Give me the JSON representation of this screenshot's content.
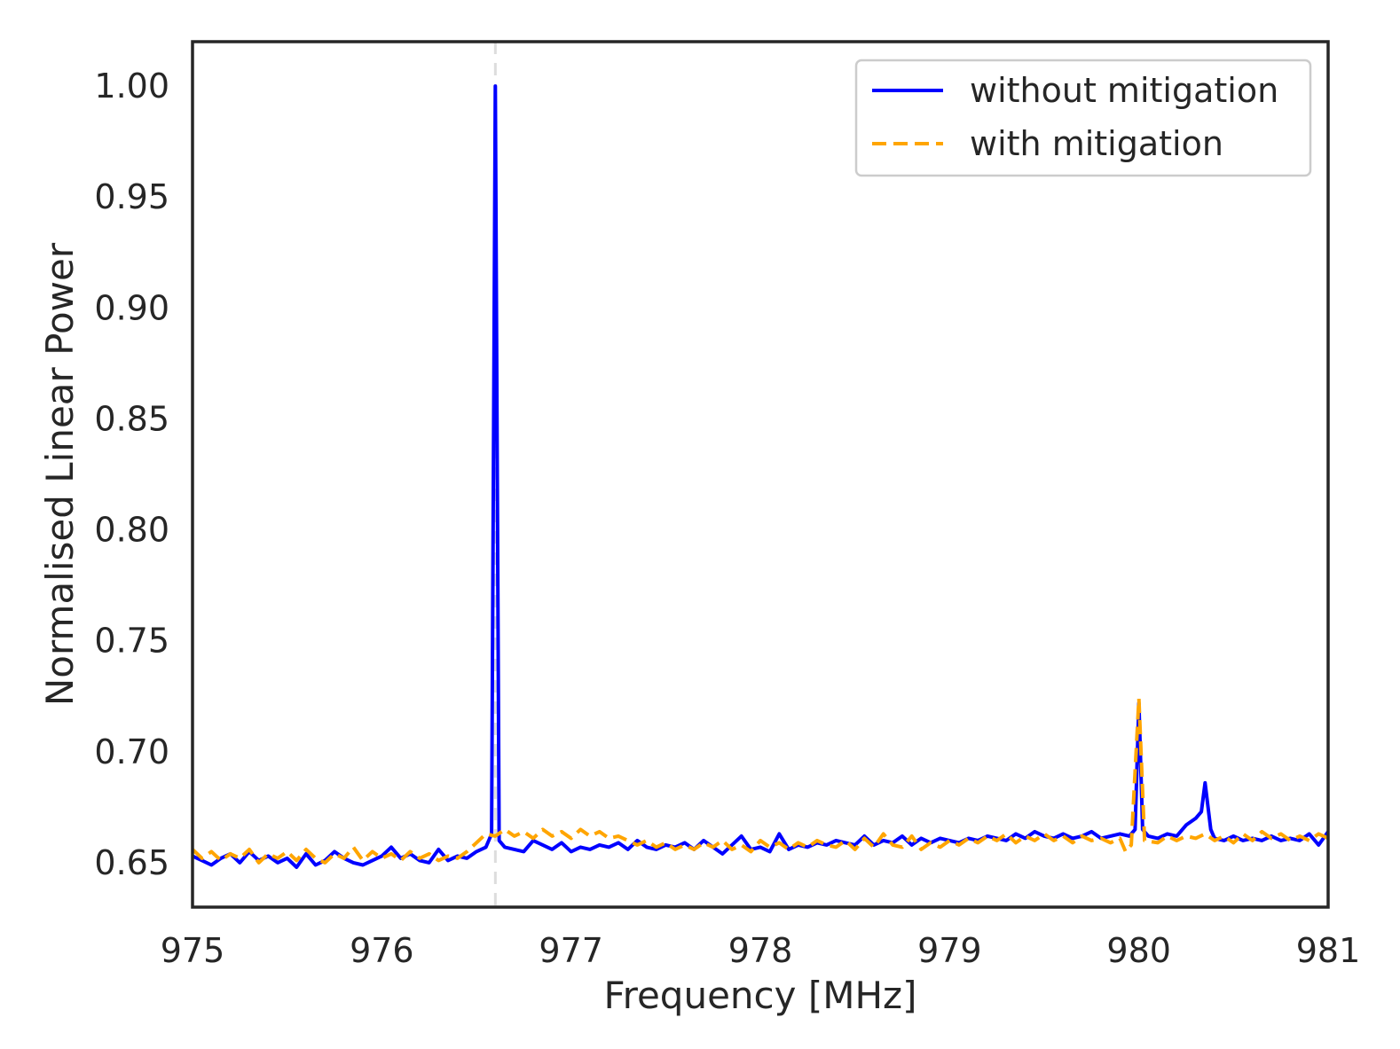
{
  "chart_data": {
    "type": "line",
    "xlabel": "Frequency [MHz]",
    "ylabel": "Normalised Linear Power",
    "xlim": [
      975,
      981
    ],
    "ylim": [
      0.63,
      1.02
    ],
    "x_ticks": [
      975,
      976,
      977,
      978,
      979,
      980,
      981
    ],
    "x_tick_labels": [
      "975",
      "976",
      "977",
      "978",
      "979",
      "980",
      "981"
    ],
    "y_ticks": [
      0.65,
      0.7,
      0.75,
      0.8,
      0.85,
      0.9,
      0.95,
      1.0
    ],
    "y_tick_labels": [
      "0.65",
      "0.70",
      "0.75",
      "0.80",
      "0.85",
      "0.90",
      "0.95",
      "1.00"
    ],
    "grid": false,
    "legend_position": "top-right",
    "vertical_marker": {
      "x": 976.6,
      "style": "dashed",
      "color": "#dddddd"
    },
    "series": [
      {
        "name": "without mitigation",
        "color": "#0000ff",
        "style": "solid",
        "points": [
          [
            975.0,
            0.653
          ],
          [
            975.05,
            0.651
          ],
          [
            975.1,
            0.649
          ],
          [
            975.15,
            0.652
          ],
          [
            975.2,
            0.654
          ],
          [
            975.25,
            0.65
          ],
          [
            975.3,
            0.655
          ],
          [
            975.35,
            0.651
          ],
          [
            975.4,
            0.653
          ],
          [
            975.45,
            0.65
          ],
          [
            975.5,
            0.652
          ],
          [
            975.55,
            0.648
          ],
          [
            975.6,
            0.654
          ],
          [
            975.65,
            0.649
          ],
          [
            975.7,
            0.651
          ],
          [
            975.75,
            0.655
          ],
          [
            975.8,
            0.652
          ],
          [
            975.85,
            0.65
          ],
          [
            975.9,
            0.649
          ],
          [
            975.95,
            0.651
          ],
          [
            976.0,
            0.653
          ],
          [
            976.05,
            0.657
          ],
          [
            976.1,
            0.652
          ],
          [
            976.15,
            0.654
          ],
          [
            976.2,
            0.651
          ],
          [
            976.25,
            0.65
          ],
          [
            976.3,
            0.656
          ],
          [
            976.35,
            0.651
          ],
          [
            976.4,
            0.653
          ],
          [
            976.45,
            0.652
          ],
          [
            976.5,
            0.655
          ],
          [
            976.55,
            0.657
          ],
          [
            976.58,
            0.663
          ],
          [
            976.6,
            1.0
          ],
          [
            976.62,
            0.66
          ],
          [
            976.65,
            0.657
          ],
          [
            976.7,
            0.656
          ],
          [
            976.75,
            0.655
          ],
          [
            976.8,
            0.66
          ],
          [
            976.85,
            0.658
          ],
          [
            976.9,
            0.656
          ],
          [
            976.95,
            0.659
          ],
          [
            977.0,
            0.655
          ],
          [
            977.05,
            0.657
          ],
          [
            977.1,
            0.656
          ],
          [
            977.15,
            0.658
          ],
          [
            977.2,
            0.657
          ],
          [
            977.25,
            0.659
          ],
          [
            977.3,
            0.656
          ],
          [
            977.35,
            0.66
          ],
          [
            977.4,
            0.657
          ],
          [
            977.45,
            0.656
          ],
          [
            977.5,
            0.658
          ],
          [
            977.55,
            0.657
          ],
          [
            977.6,
            0.659
          ],
          [
            977.65,
            0.656
          ],
          [
            977.7,
            0.66
          ],
          [
            977.75,
            0.657
          ],
          [
            977.8,
            0.654
          ],
          [
            977.85,
            0.658
          ],
          [
            977.9,
            0.662
          ],
          [
            977.95,
            0.656
          ],
          [
            978.0,
            0.657
          ],
          [
            978.05,
            0.655
          ],
          [
            978.1,
            0.663
          ],
          [
            978.15,
            0.656
          ],
          [
            978.2,
            0.658
          ],
          [
            978.25,
            0.657
          ],
          [
            978.3,
            0.659
          ],
          [
            978.35,
            0.658
          ],
          [
            978.4,
            0.66
          ],
          [
            978.45,
            0.659
          ],
          [
            978.5,
            0.658
          ],
          [
            978.55,
            0.662
          ],
          [
            978.6,
            0.658
          ],
          [
            978.65,
            0.66
          ],
          [
            978.7,
            0.659
          ],
          [
            978.75,
            0.662
          ],
          [
            978.8,
            0.658
          ],
          [
            978.85,
            0.661
          ],
          [
            978.9,
            0.659
          ],
          [
            978.95,
            0.661
          ],
          [
            979.0,
            0.66
          ],
          [
            979.05,
            0.659
          ],
          [
            979.1,
            0.661
          ],
          [
            979.15,
            0.66
          ],
          [
            979.2,
            0.662
          ],
          [
            979.25,
            0.661
          ],
          [
            979.3,
            0.66
          ],
          [
            979.35,
            0.663
          ],
          [
            979.4,
            0.661
          ],
          [
            979.45,
            0.664
          ],
          [
            979.5,
            0.662
          ],
          [
            979.55,
            0.661
          ],
          [
            979.6,
            0.663
          ],
          [
            979.65,
            0.661
          ],
          [
            979.7,
            0.662
          ],
          [
            979.75,
            0.664
          ],
          [
            979.8,
            0.661
          ],
          [
            979.85,
            0.662
          ],
          [
            979.9,
            0.663
          ],
          [
            979.95,
            0.662
          ],
          [
            979.98,
            0.665
          ],
          [
            980.0,
            0.722
          ],
          [
            980.02,
            0.665
          ],
          [
            980.05,
            0.662
          ],
          [
            980.1,
            0.661
          ],
          [
            980.15,
            0.663
          ],
          [
            980.2,
            0.662
          ],
          [
            980.25,
            0.667
          ],
          [
            980.3,
            0.67
          ],
          [
            980.33,
            0.673
          ],
          [
            980.35,
            0.686
          ],
          [
            980.38,
            0.665
          ],
          [
            980.4,
            0.661
          ],
          [
            980.45,
            0.66
          ],
          [
            980.5,
            0.662
          ],
          [
            980.55,
            0.66
          ],
          [
            980.6,
            0.661
          ],
          [
            980.65,
            0.66
          ],
          [
            980.7,
            0.662
          ],
          [
            980.75,
            0.66
          ],
          [
            980.8,
            0.661
          ],
          [
            980.85,
            0.66
          ],
          [
            980.9,
            0.663
          ],
          [
            980.95,
            0.658
          ],
          [
            981.0,
            0.664
          ]
        ]
      },
      {
        "name": "with mitigation",
        "color": "#ffa500",
        "style": "dashed",
        "points": [
          [
            975.0,
            0.656
          ],
          [
            975.05,
            0.652
          ],
          [
            975.1,
            0.655
          ],
          [
            975.15,
            0.651
          ],
          [
            975.2,
            0.654
          ],
          [
            975.25,
            0.652
          ],
          [
            975.3,
            0.656
          ],
          [
            975.35,
            0.65
          ],
          [
            975.4,
            0.654
          ],
          [
            975.45,
            0.652
          ],
          [
            975.5,
            0.655
          ],
          [
            975.55,
            0.651
          ],
          [
            975.6,
            0.656
          ],
          [
            975.65,
            0.652
          ],
          [
            975.7,
            0.65
          ],
          [
            975.75,
            0.654
          ],
          [
            975.8,
            0.652
          ],
          [
            975.85,
            0.657
          ],
          [
            975.9,
            0.651
          ],
          [
            975.95,
            0.655
          ],
          [
            976.0,
            0.652
          ],
          [
            976.05,
            0.654
          ],
          [
            976.1,
            0.651
          ],
          [
            976.15,
            0.655
          ],
          [
            976.2,
            0.652
          ],
          [
            976.25,
            0.654
          ],
          [
            976.3,
            0.651
          ],
          [
            976.35,
            0.653
          ],
          [
            976.4,
            0.652
          ],
          [
            976.45,
            0.655
          ],
          [
            976.5,
            0.659
          ],
          [
            976.55,
            0.663
          ],
          [
            976.6,
            0.662
          ],
          [
            976.65,
            0.665
          ],
          [
            976.7,
            0.662
          ],
          [
            976.75,
            0.664
          ],
          [
            976.8,
            0.661
          ],
          [
            976.85,
            0.665
          ],
          [
            976.9,
            0.662
          ],
          [
            976.95,
            0.664
          ],
          [
            977.0,
            0.661
          ],
          [
            977.05,
            0.665
          ],
          [
            977.1,
            0.662
          ],
          [
            977.15,
            0.664
          ],
          [
            977.2,
            0.661
          ],
          [
            977.25,
            0.662
          ],
          [
            977.3,
            0.66
          ],
          [
            977.35,
            0.658
          ],
          [
            977.4,
            0.66
          ],
          [
            977.45,
            0.657
          ],
          [
            977.5,
            0.659
          ],
          [
            977.55,
            0.656
          ],
          [
            977.6,
            0.658
          ],
          [
            977.65,
            0.656
          ],
          [
            977.7,
            0.659
          ],
          [
            977.75,
            0.657
          ],
          [
            977.8,
            0.66
          ],
          [
            977.85,
            0.656
          ],
          [
            977.9,
            0.658
          ],
          [
            977.95,
            0.655
          ],
          [
            978.0,
            0.66
          ],
          [
            978.05,
            0.657
          ],
          [
            978.1,
            0.659
          ],
          [
            978.15,
            0.656
          ],
          [
            978.2,
            0.659
          ],
          [
            978.25,
            0.657
          ],
          [
            978.3,
            0.66
          ],
          [
            978.35,
            0.658
          ],
          [
            978.4,
            0.657
          ],
          [
            978.45,
            0.66
          ],
          [
            978.5,
            0.656
          ],
          [
            978.55,
            0.661
          ],
          [
            978.6,
            0.657
          ],
          [
            978.65,
            0.663
          ],
          [
            978.7,
            0.658
          ],
          [
            978.75,
            0.657
          ],
          [
            978.8,
            0.662
          ],
          [
            978.85,
            0.656
          ],
          [
            978.9,
            0.659
          ],
          [
            978.95,
            0.657
          ],
          [
            979.0,
            0.66
          ],
          [
            979.05,
            0.658
          ],
          [
            979.1,
            0.661
          ],
          [
            979.15,
            0.659
          ],
          [
            979.2,
            0.662
          ],
          [
            979.25,
            0.66
          ],
          [
            979.3,
            0.663
          ],
          [
            979.35,
            0.659
          ],
          [
            979.4,
            0.662
          ],
          [
            979.45,
            0.66
          ],
          [
            979.5,
            0.663
          ],
          [
            979.55,
            0.66
          ],
          [
            979.6,
            0.662
          ],
          [
            979.65,
            0.659
          ],
          [
            979.7,
            0.662
          ],
          [
            979.75,
            0.66
          ],
          [
            979.8,
            0.661
          ],
          [
            979.85,
            0.659
          ],
          [
            979.9,
            0.661
          ],
          [
            979.93,
            0.655
          ],
          [
            979.96,
            0.658
          ],
          [
            980.0,
            0.724
          ],
          [
            980.03,
            0.66
          ],
          [
            980.1,
            0.659
          ],
          [
            980.15,
            0.662
          ],
          [
            980.2,
            0.66
          ],
          [
            980.25,
            0.662
          ],
          [
            980.3,
            0.661
          ],
          [
            980.35,
            0.663
          ],
          [
            980.4,
            0.66
          ],
          [
            980.45,
            0.662
          ],
          [
            980.5,
            0.659
          ],
          [
            980.55,
            0.663
          ],
          [
            980.6,
            0.66
          ],
          [
            980.65,
            0.664
          ],
          [
            980.7,
            0.661
          ],
          [
            980.75,
            0.663
          ],
          [
            980.8,
            0.66
          ],
          [
            980.85,
            0.662
          ],
          [
            980.9,
            0.66
          ],
          [
            980.95,
            0.663
          ],
          [
            981.0,
            0.661
          ]
        ]
      }
    ]
  }
}
